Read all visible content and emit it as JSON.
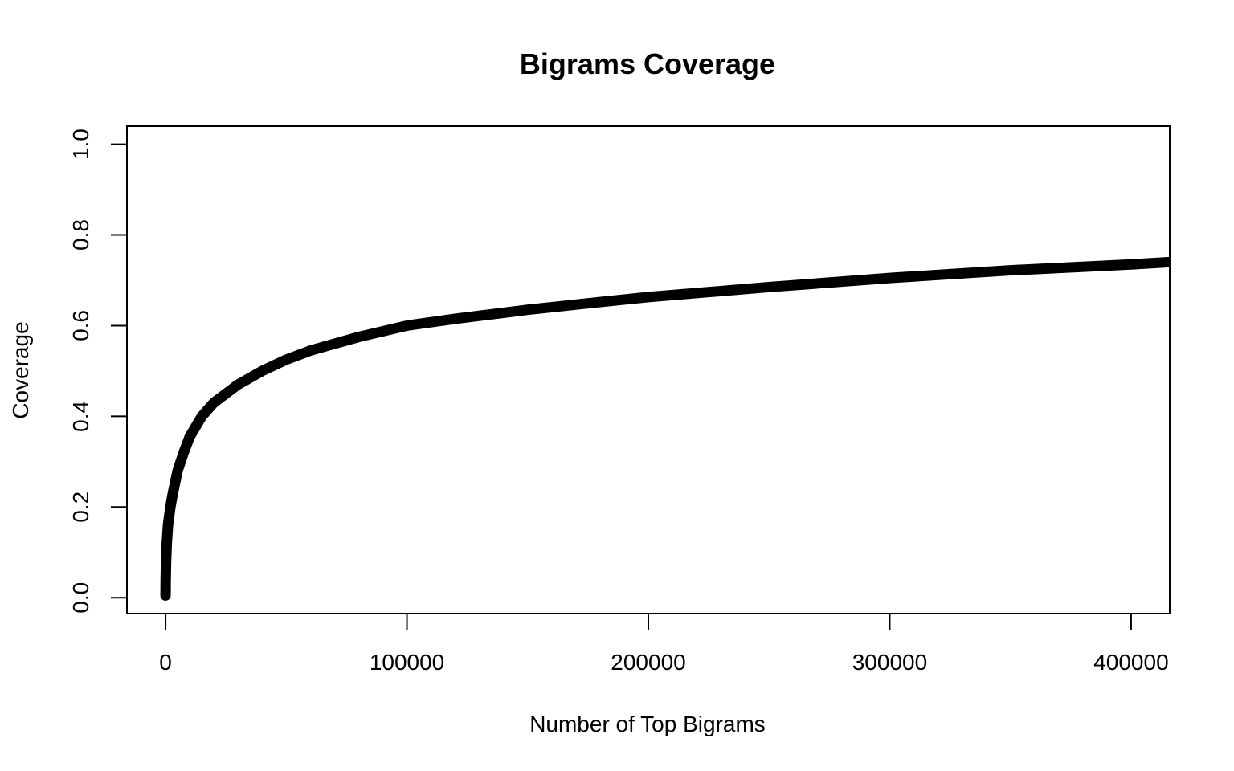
{
  "chart_data": {
    "type": "line",
    "title": "Bigrams Coverage",
    "xlabel": "Number of Top Bigrams",
    "ylabel": "Coverage",
    "xlim": [
      -16000,
      416000
    ],
    "ylim": [
      -0.035,
      1.04
    ],
    "x_ticks": [
      {
        "value": 0,
        "label": "0"
      },
      {
        "value": 100000,
        "label": "100000"
      },
      {
        "value": 200000,
        "label": "200000"
      },
      {
        "value": 300000,
        "label": "300000"
      },
      {
        "value": 400000,
        "label": "400000"
      }
    ],
    "y_ticks": [
      {
        "value": 0.0,
        "label": "0.0"
      },
      {
        "value": 0.2,
        "label": "0.2"
      },
      {
        "value": 0.4,
        "label": "0.4"
      },
      {
        "value": 0.6,
        "label": "0.6"
      },
      {
        "value": 0.8,
        "label": "0.8"
      },
      {
        "value": 1.0,
        "label": "1.0"
      }
    ],
    "grid": false,
    "legend": "none",
    "series_color": "#000000",
    "x": [
      0,
      50,
      200,
      500,
      1000,
      2000,
      3000,
      5000,
      7500,
      10000,
      15000,
      20000,
      30000,
      40000,
      50000,
      60000,
      70000,
      80000,
      100000,
      120000,
      150000,
      180000,
      200000,
      250000,
      300000,
      350000,
      400000,
      416000
    ],
    "y": [
      0.005,
      0.04,
      0.08,
      0.12,
      0.16,
      0.2,
      0.23,
      0.28,
      0.32,
      0.355,
      0.4,
      0.43,
      0.47,
      0.5,
      0.525,
      0.545,
      0.56,
      0.575,
      0.6,
      0.615,
      0.635,
      0.652,
      0.663,
      0.685,
      0.705,
      0.722,
      0.735,
      0.74
    ]
  }
}
